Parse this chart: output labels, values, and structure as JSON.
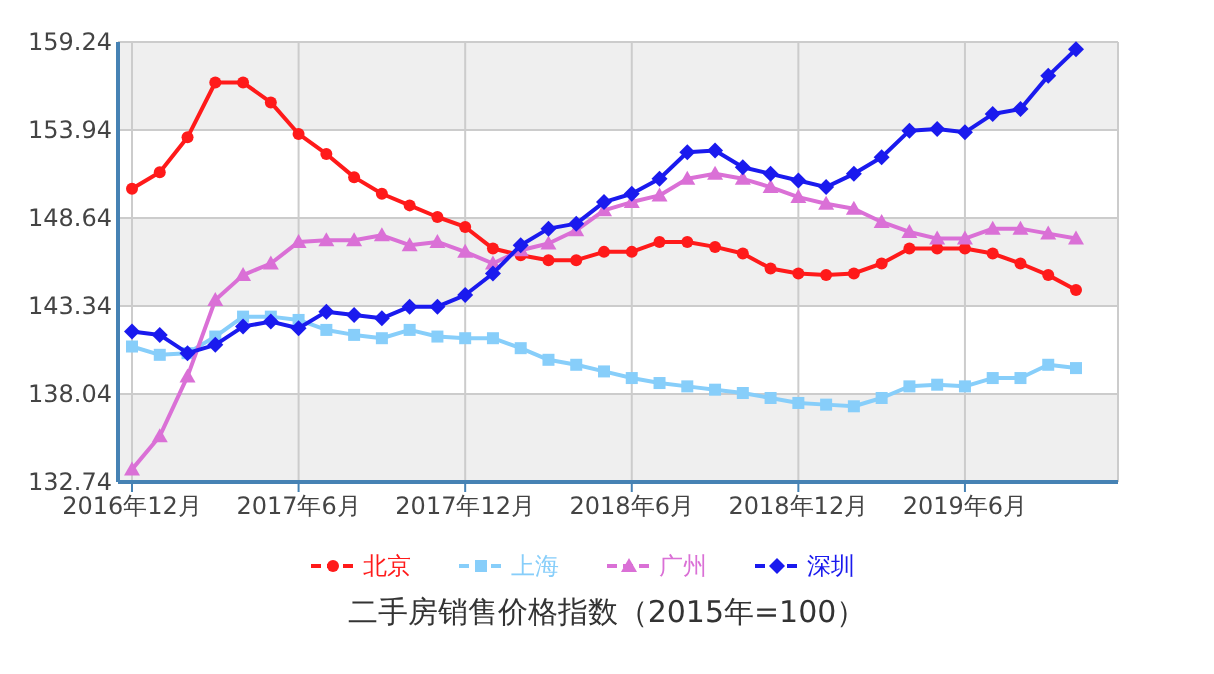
{
  "chart_data": {
    "type": "line",
    "title": "二手房销售价格指数（2015年=100）",
    "categories": [
      "2016年12月",
      null,
      null,
      null,
      null,
      null,
      "2017年6月",
      null,
      null,
      null,
      null,
      null,
      "2017年12月",
      null,
      null,
      null,
      null,
      null,
      "2018年6月",
      null,
      null,
      null,
      null,
      null,
      "2018年12月",
      null,
      null,
      null,
      null,
      null,
      "2019年6月",
      null,
      null,
      null,
      null
    ],
    "ylim": [
      132.74,
      159.24
    ],
    "yticks": [
      132.74,
      138.04,
      143.34,
      148.64,
      153.94,
      159.24
    ],
    "grid": true,
    "legend": "bottom",
    "line_style": "solid",
    "series": [
      {
        "name": "北京",
        "color": "#ff1a1a",
        "marker": "circle",
        "values": [
          150.4,
          151.4,
          153.5,
          156.8,
          156.8,
          155.6,
          153.7,
          152.5,
          151.1,
          150.1,
          149.4,
          148.7,
          148.1,
          146.8,
          146.4,
          146.1,
          146.1,
          146.6,
          146.6,
          147.2,
          147.2,
          146.9,
          146.5,
          145.6,
          145.3,
          145.2,
          145.3,
          145.9,
          146.8,
          146.8,
          146.8,
          146.5,
          145.9,
          145.2,
          144.3
        ]
      },
      {
        "name": "上海",
        "color": "#87cefa",
        "marker": "square",
        "values": [
          140.9,
          140.4,
          140.5,
          141.5,
          142.7,
          142.7,
          142.5,
          141.9,
          141.6,
          141.4,
          141.9,
          141.5,
          141.4,
          141.4,
          140.8,
          140.1,
          139.8,
          139.4,
          139.0,
          138.7,
          138.5,
          138.3,
          138.1,
          137.8,
          137.5,
          137.4,
          137.3,
          137.8,
          138.5,
          138.6,
          138.5,
          139.0,
          139.0,
          139.8,
          139.6
        ]
      },
      {
        "name": "广州",
        "color": "#da70d6",
        "marker": "triangle",
        "values": [
          133.5,
          135.5,
          139.1,
          143.7,
          145.2,
          145.9,
          147.2,
          147.3,
          147.3,
          147.6,
          147.0,
          147.2,
          146.6,
          145.9,
          146.7,
          147.1,
          147.9,
          149.1,
          149.6,
          150.0,
          151.0,
          151.3,
          151.0,
          150.5,
          149.9,
          149.5,
          149.2,
          148.4,
          147.8,
          147.4,
          147.4,
          148.0,
          148.0,
          147.7,
          147.4
        ]
      },
      {
        "name": "深圳",
        "color": "#1a1aee",
        "marker": "diamond",
        "values": [
          141.8,
          141.6,
          140.5,
          141.0,
          142.1,
          142.4,
          142.0,
          143.0,
          142.8,
          142.6,
          143.3,
          143.3,
          144.0,
          145.3,
          147.0,
          148.0,
          148.3,
          149.6,
          150.1,
          151.0,
          152.6,
          152.7,
          151.7,
          151.3,
          150.9,
          150.5,
          151.3,
          152.3,
          153.9,
          154.0,
          153.8,
          154.9,
          155.2,
          157.2,
          158.8
        ]
      }
    ]
  }
}
